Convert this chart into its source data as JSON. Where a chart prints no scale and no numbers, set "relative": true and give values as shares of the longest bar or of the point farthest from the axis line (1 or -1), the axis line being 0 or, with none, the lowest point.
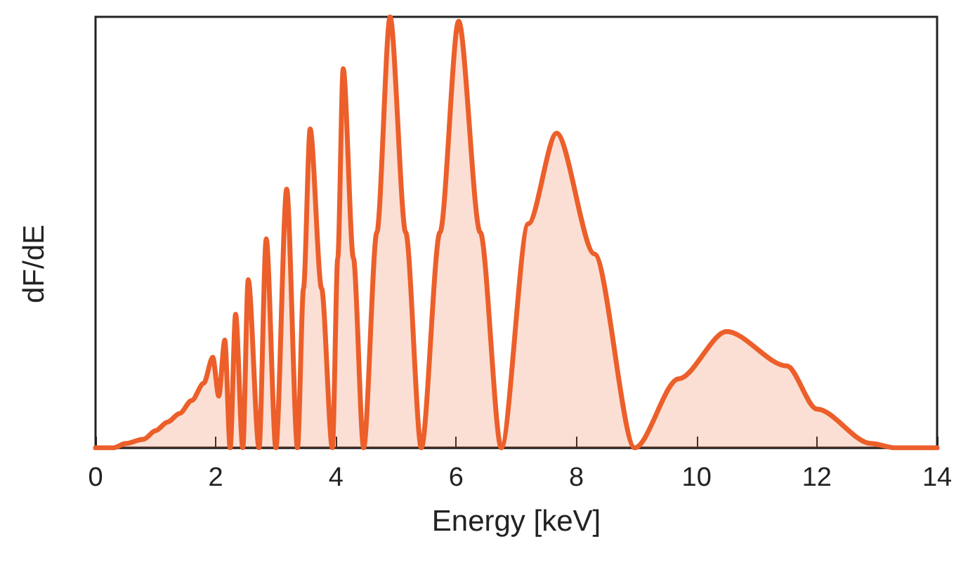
{
  "chart_data": {
    "type": "area",
    "xlabel": "Energy [keV]",
    "ylabel": "dF/dE",
    "relative": true,
    "color": "#ec5f2a",
    "xlim": [
      0,
      14
    ],
    "xticks": [
      0,
      2,
      4,
      6,
      8,
      10,
      12,
      14
    ],
    "x": [
      0,
      0.3,
      0.5,
      0.8,
      1.0,
      1.2,
      1.4,
      1.6,
      1.8,
      1.95,
      2.05,
      2.15,
      2.24,
      2.33,
      2.45,
      2.54,
      2.72,
      2.84,
      3.0,
      3.18,
      3.36,
      3.46,
      3.57,
      3.76,
      3.94,
      4.03,
      4.12,
      4.29,
      4.46,
      4.68,
      4.9,
      5.16,
      5.42,
      5.73,
      6.04,
      6.4,
      6.75,
      7.2,
      7.67,
      8.3,
      8.97,
      9.7,
      10.5,
      11.5,
      12.0,
      12.9,
      13.3,
      14
    ],
    "values": [
      0,
      0,
      0.01,
      0.02,
      0.04,
      0.06,
      0.08,
      0.11,
      0.15,
      0.21,
      0.12,
      0.25,
      0,
      0.31,
      0,
      0.39,
      0,
      0.485,
      0,
      0.6,
      0,
      0.37,
      0.74,
      0.37,
      0,
      0.44,
      0.88,
      0.44,
      0,
      0.5,
      1,
      0.5,
      0,
      0.5,
      0.99,
      0.5,
      0,
      0.52,
      0.73,
      0.45,
      0,
      0.16,
      0.27,
      0.19,
      0.09,
      0.01,
      0,
      0
    ]
  }
}
